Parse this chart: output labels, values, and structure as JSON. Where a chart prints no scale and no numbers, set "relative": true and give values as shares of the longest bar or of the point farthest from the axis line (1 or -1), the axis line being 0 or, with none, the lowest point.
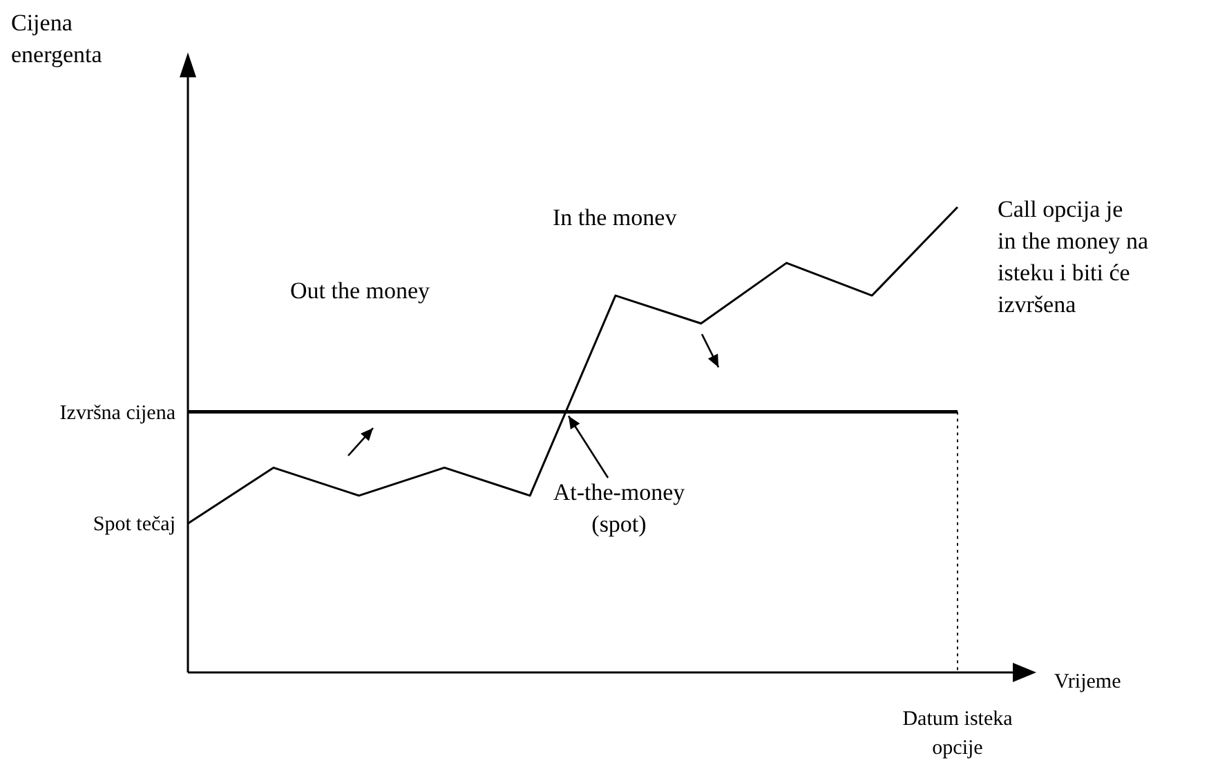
{
  "chart_data": {
    "type": "line",
    "relative": true,
    "xlabel": "Vrijeme",
    "categories": [
      null,
      null,
      null,
      null,
      null,
      null,
      null,
      null,
      null,
      null
    ],
    "series": [
      {
        "color": "#000000",
        "values": [
          0.32,
          0.44,
          0.38,
          0.44,
          0.38,
          0.81,
          0.75,
          0.88,
          0.81,
          1
        ]
      }
    ],
    "ref_lines": [
      {
        "axis": "y",
        "value": 0.56,
        "label": "Izvršna cijena",
        "color": "#000000",
        "line_style": "solid"
      }
    ],
    "annotations": [
      "Out the money",
      "In the monev",
      "At-the-money (spot)",
      "Spot tečaj",
      "Call opcija je in the money na isteku i biti će izvršena",
      "Cijena energenta",
      "Datum isteka opcije"
    ],
    "line_style": "solid"
  }
}
